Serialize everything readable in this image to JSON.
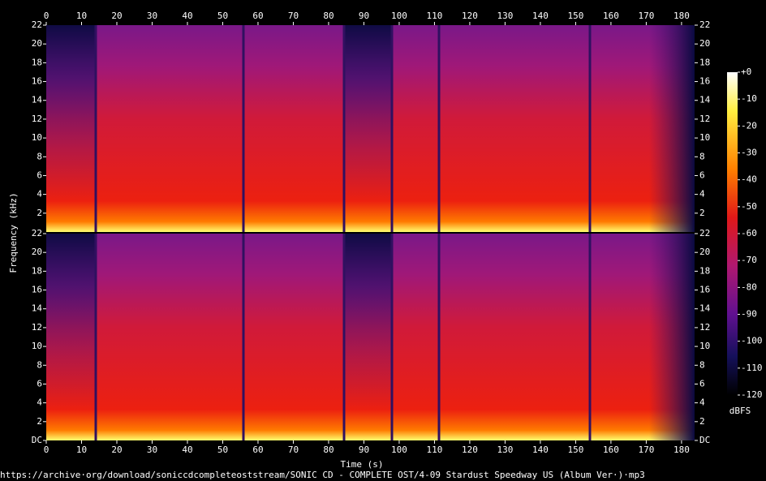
{
  "chart_data": {
    "type": "spectrogram",
    "x_label": "Time (s)",
    "y_label": "Frequency (kHz)",
    "caption": "https://archive·org/download/soniccdcompleteoststream/SONIC CD - COMPLETE OST/4-09 Stardust Speedway US (Album Ver·)·mp3",
    "xlim": [
      0,
      183.7
    ],
    "xticks": [
      0,
      10,
      20,
      30,
      40,
      50,
      60,
      70,
      80,
      90,
      100,
      110,
      120,
      130,
      140,
      150,
      160,
      170,
      180
    ],
    "panels": [
      {
        "ylim": [
          0,
          22
        ],
        "yticks": [
          2,
          4,
          6,
          8,
          10,
          12,
          14,
          16,
          18,
          20,
          22
        ]
      },
      {
        "ylim": [
          0,
          22
        ],
        "yticks": [
          {
            "value": 0,
            "label": "DC"
          },
          2,
          4,
          6,
          8,
          10,
          12,
          14,
          16,
          18,
          20,
          22
        ]
      }
    ],
    "colorbar": {
      "label": "dBFS",
      "lim": [
        -120,
        0
      ],
      "ticks": [
        {
          "value": 0,
          "label": "+0"
        },
        -10,
        -20,
        -30,
        -40,
        -50,
        -60,
        -70,
        -80,
        -90,
        -100,
        -110,
        -120
      ]
    }
  }
}
